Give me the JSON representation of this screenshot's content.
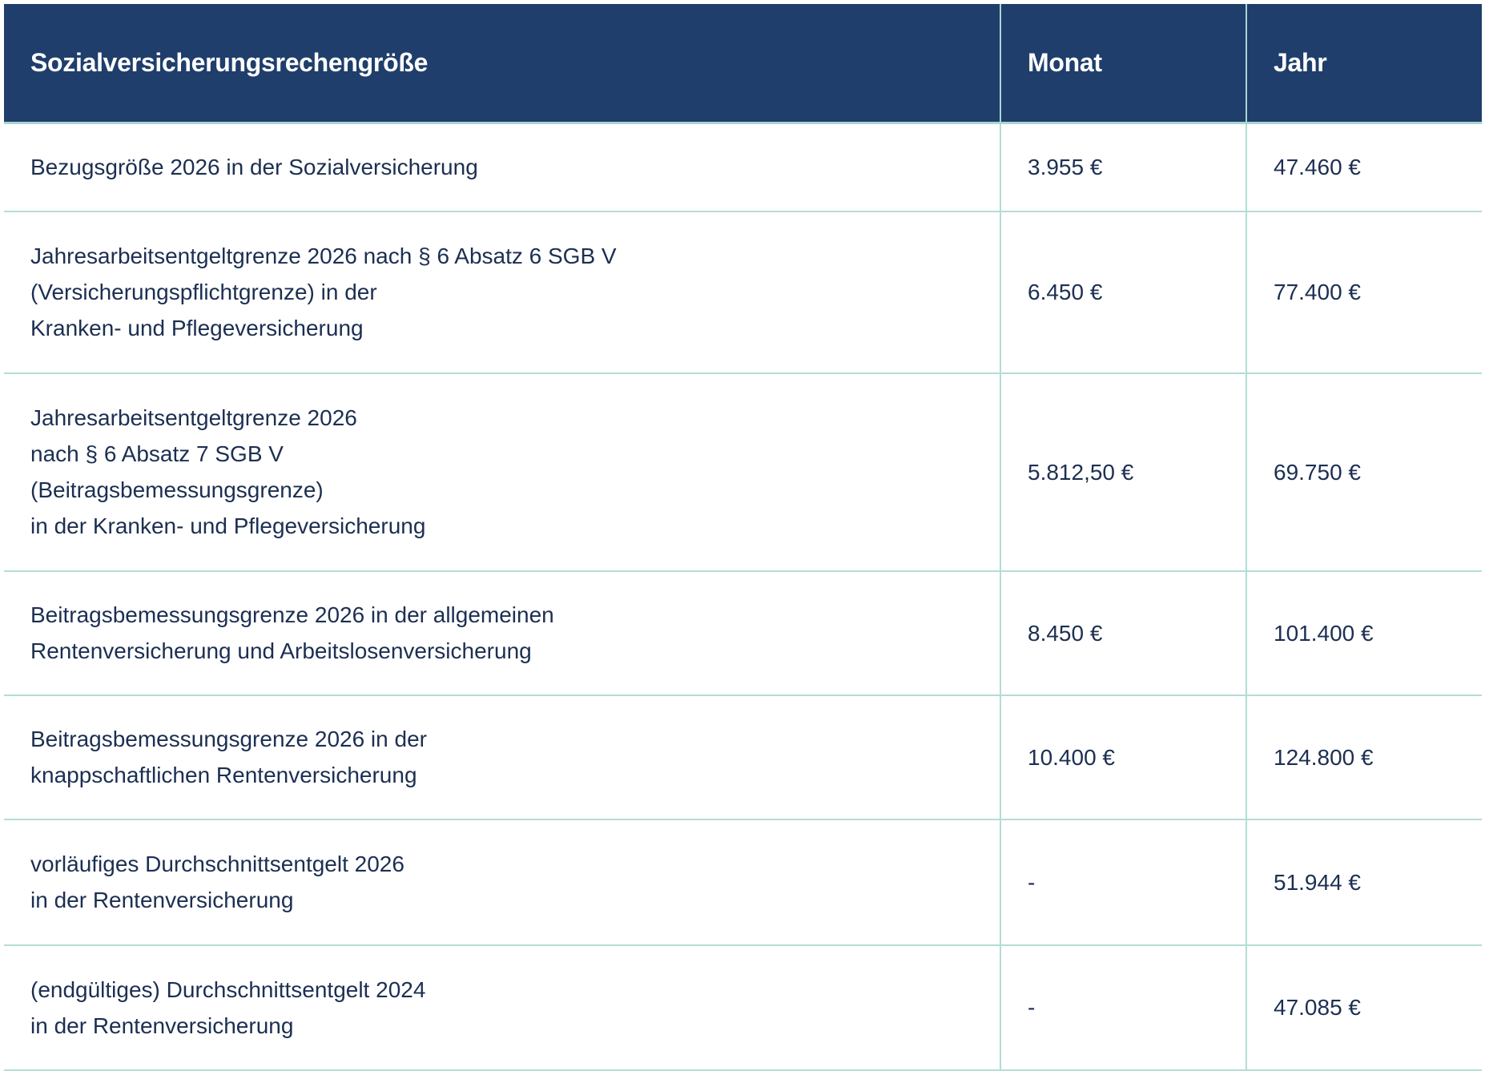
{
  "header": {
    "col1": "Sozialversicherungsrechengröße",
    "col2": "Monat",
    "col3": "Jahr"
  },
  "rows": [
    {
      "label": [
        "Bezugsgröße 2026 in der Sozialversicherung"
      ],
      "month": "3.955 €",
      "year": "47.460 €"
    },
    {
      "label": [
        "Jahresarbeitsentgeltgrenze 2026 nach § 6 Absatz 6 SGB V",
        "(Versicherungspflichtgrenze) in der",
        "Kranken- und Pflegeversicherung"
      ],
      "month": "6.450 €",
      "year": "77.400 €"
    },
    {
      "label": [
        "Jahresarbeitsentgeltgrenze 2026",
        "nach § 6 Absatz 7 SGB V",
        "(Beitragsbemessungsgrenze)",
        "in der Kranken- und Pflegeversicherung"
      ],
      "month": "5.812,50 €",
      "year": "69.750 €"
    },
    {
      "label": [
        "Beitragsbemessungsgrenze 2026 in der allgemeinen",
        "Rentenversicherung und Arbeitslosenversicherung"
      ],
      "month": "8.450 €",
      "year": "101.400 €"
    },
    {
      "label": [
        "Beitragsbemessungsgrenze 2026 in der",
        "knappschaftlichen Rentenversicherung"
      ],
      "month": "10.400 €",
      "year": "124.800 €"
    },
    {
      "label": [
        "vorläufiges Durchschnittsentgelt 2026",
        "in der Rentenversicherung"
      ],
      "month": "-",
      "year": "51.944 €"
    },
    {
      "label": [
        "(endgültiges) Durchschnittsentgelt 2024",
        "in der Rentenversicherung"
      ],
      "month": "-",
      "year": "47.085 €"
    }
  ],
  "colors": {
    "header_bg": "#1f3e6b",
    "text": "#1c2f52",
    "border": "#b3ddd5"
  }
}
